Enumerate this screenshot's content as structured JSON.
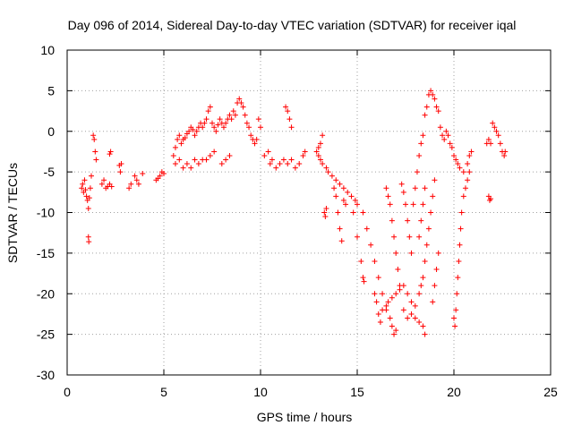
{
  "chart_data": {
    "type": "scatter",
    "title": "Day 096 of 2014, Sidereal Day-to-day VTEC variation (SDTVAR) for receiver iqal",
    "xlabel": "GPS time / hours",
    "ylabel": "SDTVAR / TECUs",
    "xlim": [
      0,
      25
    ],
    "ylim": [
      -30,
      10
    ],
    "x_ticks": [
      0,
      5,
      10,
      15,
      20,
      25
    ],
    "y_ticks": [
      -30,
      -25,
      -20,
      -15,
      -10,
      -5,
      0,
      5,
      10
    ],
    "x_tick_labels": [
      "0",
      "5",
      "10",
      "15",
      "20",
      "25"
    ],
    "y_tick_labels": [
      "-30",
      "-25",
      "-20",
      "-15",
      "-10",
      "-5",
      "0",
      "5",
      "10"
    ],
    "grid": true,
    "marker": "+",
    "color": "#ff0000",
    "series": [
      {
        "name": "SDTVAR",
        "points": [
          [
            0.75,
            -7.0
          ],
          [
            0.8,
            -6.5
          ],
          [
            0.85,
            -7.5
          ],
          [
            0.9,
            -6.0
          ],
          [
            0.95,
            -7.2
          ],
          [
            1.0,
            -8.0
          ],
          [
            1.05,
            -8.5
          ],
          [
            1.1,
            -9.5
          ],
          [
            1.15,
            -8.2
          ],
          [
            1.2,
            -7.0
          ],
          [
            1.25,
            -5.5
          ],
          [
            1.1,
            -13.0
          ],
          [
            1.12,
            -13.6
          ],
          [
            1.35,
            -0.5
          ],
          [
            1.4,
            -1.0
          ],
          [
            1.45,
            -2.5
          ],
          [
            1.5,
            -3.5
          ],
          [
            1.8,
            -6.5
          ],
          [
            1.9,
            -6.0
          ],
          [
            2.0,
            -7.0
          ],
          [
            2.1,
            -6.8
          ],
          [
            2.2,
            -6.5
          ],
          [
            2.3,
            -6.8
          ],
          [
            2.2,
            -2.8
          ],
          [
            2.25,
            -2.5
          ],
          [
            2.7,
            -4.2
          ],
          [
            2.75,
            -5.0
          ],
          [
            2.8,
            -4.0
          ],
          [
            3.2,
            -7.0
          ],
          [
            3.3,
            -6.5
          ],
          [
            3.5,
            -5.5
          ],
          [
            3.6,
            -6.0
          ],
          [
            3.7,
            -6.5
          ],
          [
            3.9,
            -5.2
          ],
          [
            4.6,
            -6.0
          ],
          [
            4.7,
            -5.8
          ],
          [
            4.8,
            -5.5
          ],
          [
            4.9,
            -5.0
          ],
          [
            5.0,
            -5.2
          ],
          [
            5.5,
            -3.0
          ],
          [
            5.6,
            -2.0
          ],
          [
            5.7,
            -1.0
          ],
          [
            5.8,
            -0.5
          ],
          [
            5.9,
            -1.5
          ],
          [
            6.0,
            -1.0
          ],
          [
            6.1,
            -0.8
          ],
          [
            6.2,
            -0.3
          ],
          [
            6.3,
            0.0
          ],
          [
            6.4,
            0.5
          ],
          [
            6.5,
            0.2
          ],
          [
            6.6,
            -0.5
          ],
          [
            6.7,
            0.0
          ],
          [
            6.8,
            0.5
          ],
          [
            6.9,
            1.0
          ],
          [
            7.0,
            0.5
          ],
          [
            7.1,
            1.0
          ],
          [
            7.2,
            1.5
          ],
          [
            7.3,
            2.5
          ],
          [
            7.4,
            3.0
          ],
          [
            7.5,
            1.0
          ],
          [
            7.6,
            0.5
          ],
          [
            7.7,
            0.0
          ],
          [
            7.8,
            0.8
          ],
          [
            7.9,
            1.5
          ],
          [
            8.0,
            1.0
          ],
          [
            8.1,
            0.5
          ],
          [
            8.2,
            1.0
          ],
          [
            8.3,
            1.5
          ],
          [
            8.4,
            2.0
          ],
          [
            8.5,
            1.5
          ],
          [
            8.6,
            2.5
          ],
          [
            8.7,
            2.0
          ],
          [
            8.8,
            3.5
          ],
          [
            8.9,
            4.0
          ],
          [
            9.0,
            3.5
          ],
          [
            9.1,
            3.0
          ],
          [
            9.2,
            2.0
          ],
          [
            9.3,
            1.0
          ],
          [
            9.4,
            0.5
          ],
          [
            9.5,
            -0.5
          ],
          [
            9.6,
            -1.0
          ],
          [
            9.7,
            -1.5
          ],
          [
            9.8,
            -1.0
          ],
          [
            9.9,
            1.5
          ],
          [
            10.0,
            0.5
          ],
          [
            5.6,
            -4.0
          ],
          [
            5.8,
            -3.5
          ],
          [
            6.0,
            -4.5
          ],
          [
            6.2,
            -4.0
          ],
          [
            6.4,
            -4.5
          ],
          [
            6.6,
            -3.5
          ],
          [
            6.8,
            -4.0
          ],
          [
            7.0,
            -3.5
          ],
          [
            7.2,
            -3.5
          ],
          [
            7.4,
            -3.0
          ],
          [
            7.6,
            -2.5
          ],
          [
            8.0,
            -4.0
          ],
          [
            8.2,
            -3.5
          ],
          [
            8.4,
            -3.0
          ],
          [
            10.2,
            -3.0
          ],
          [
            10.4,
            -2.5
          ],
          [
            10.5,
            -4.0
          ],
          [
            10.6,
            -3.5
          ],
          [
            10.8,
            -4.5
          ],
          [
            11.0,
            -4.0
          ],
          [
            11.2,
            -3.5
          ],
          [
            11.4,
            -4.0
          ],
          [
            11.6,
            -3.5
          ],
          [
            11.8,
            -4.5
          ],
          [
            12.0,
            -4.0
          ],
          [
            12.2,
            -3.0
          ],
          [
            12.3,
            -2.5
          ],
          [
            11.3,
            3.0
          ],
          [
            11.4,
            2.5
          ],
          [
            11.5,
            1.5
          ],
          [
            11.6,
            0.5
          ],
          [
            12.9,
            -2.5
          ],
          [
            13.0,
            -3.0
          ],
          [
            13.1,
            -3.5
          ],
          [
            13.2,
            -4.0
          ],
          [
            13.4,
            -4.5
          ],
          [
            13.5,
            -5.0
          ],
          [
            13.7,
            -5.5
          ],
          [
            13.9,
            -6.0
          ],
          [
            14.1,
            -6.5
          ],
          [
            14.3,
            -7.0
          ],
          [
            14.5,
            -7.5
          ],
          [
            14.7,
            -8.0
          ],
          [
            14.9,
            -8.5
          ],
          [
            15.0,
            -9.0
          ],
          [
            13.0,
            -2.0
          ],
          [
            13.1,
            -1.5
          ],
          [
            13.2,
            -0.5
          ],
          [
            13.3,
            -10.0
          ],
          [
            13.35,
            -10.5
          ],
          [
            13.4,
            -9.5
          ],
          [
            13.8,
            -7.0
          ],
          [
            13.9,
            -8.0
          ],
          [
            14.0,
            -10.0
          ],
          [
            14.1,
            -12.0
          ],
          [
            14.2,
            -13.5
          ],
          [
            14.3,
            -8.5
          ],
          [
            14.4,
            -9.0
          ],
          [
            14.8,
            -10.0
          ],
          [
            15.0,
            -13.0
          ],
          [
            15.2,
            -16.0
          ],
          [
            15.3,
            -18.0
          ],
          [
            15.35,
            -18.5
          ],
          [
            15.3,
            -10.0
          ],
          [
            15.5,
            -12.0
          ],
          [
            15.7,
            -14.0
          ],
          [
            15.9,
            -16.0
          ],
          [
            16.1,
            -18.0
          ],
          [
            16.3,
            -20.0
          ],
          [
            16.5,
            -22.0
          ],
          [
            16.7,
            -23.0
          ],
          [
            15.9,
            -20.0
          ],
          [
            16.0,
            -21.0
          ],
          [
            16.1,
            -22.5
          ],
          [
            16.2,
            -23.5
          ],
          [
            16.3,
            -22.0
          ],
          [
            16.5,
            -21.5
          ],
          [
            16.6,
            -21.0
          ],
          [
            16.8,
            -20.5
          ],
          [
            17.0,
            -20.0
          ],
          [
            17.2,
            -19.5
          ],
          [
            17.4,
            -19.0
          ],
          [
            17.6,
            -20.0
          ],
          [
            17.8,
            -21.0
          ],
          [
            18.0,
            -21.5
          ],
          [
            16.5,
            -7.0
          ],
          [
            16.6,
            -8.0
          ],
          [
            16.7,
            -9.0
          ],
          [
            16.8,
            -11.0
          ],
          [
            16.9,
            -13.0
          ],
          [
            17.0,
            -15.0
          ],
          [
            17.1,
            -17.0
          ],
          [
            17.2,
            -19.0
          ],
          [
            16.8,
            -24.0
          ],
          [
            16.9,
            -25.0
          ],
          [
            17.0,
            -24.5
          ],
          [
            17.3,
            -6.5
          ],
          [
            17.4,
            -7.5
          ],
          [
            17.5,
            -9.0
          ],
          [
            17.6,
            -11.0
          ],
          [
            17.7,
            -13.0
          ],
          [
            17.8,
            -15.0
          ],
          [
            17.4,
            -22.0
          ],
          [
            17.6,
            -23.0
          ],
          [
            17.8,
            -22.5
          ],
          [
            18.0,
            -23.0
          ],
          [
            18.2,
            -23.5
          ],
          [
            18.4,
            -24.0
          ],
          [
            18.5,
            -25.0
          ],
          [
            17.9,
            -9.0
          ],
          [
            18.0,
            -7.0
          ],
          [
            18.1,
            -5.0
          ],
          [
            18.2,
            -3.0
          ],
          [
            18.3,
            -1.5
          ],
          [
            18.4,
            -0.5
          ],
          [
            18.2,
            -13.0
          ],
          [
            18.3,
            -11.0
          ],
          [
            18.4,
            -9.0
          ],
          [
            18.5,
            -7.0
          ],
          [
            18.5,
            2.0
          ],
          [
            18.6,
            3.0
          ],
          [
            18.7,
            4.5
          ],
          [
            18.8,
            5.0
          ],
          [
            18.9,
            4.5
          ],
          [
            19.0,
            4.0
          ],
          [
            19.1,
            3.0
          ],
          [
            19.2,
            2.5
          ],
          [
            18.2,
            -20.0
          ],
          [
            18.3,
            -19.0
          ],
          [
            18.4,
            -18.0
          ],
          [
            18.5,
            -16.0
          ],
          [
            18.6,
            -14.0
          ],
          [
            18.7,
            -12.0
          ],
          [
            18.8,
            -10.0
          ],
          [
            18.9,
            -8.0
          ],
          [
            19.0,
            -6.0
          ],
          [
            19.2,
            -15.0
          ],
          [
            19.1,
            -17.0
          ],
          [
            19.0,
            -19.0
          ],
          [
            18.9,
            -21.0
          ],
          [
            19.3,
            0.5
          ],
          [
            19.4,
            -0.5
          ],
          [
            19.5,
            -1.0
          ],
          [
            19.6,
            0.0
          ],
          [
            19.7,
            -0.5
          ],
          [
            19.8,
            -1.5
          ],
          [
            19.9,
            -2.0
          ],
          [
            20.0,
            -23.0
          ],
          [
            20.05,
            -24.0
          ],
          [
            20.1,
            -22.0
          ],
          [
            20.15,
            -20.0
          ],
          [
            20.2,
            -18.0
          ],
          [
            20.25,
            -16.0
          ],
          [
            20.3,
            -14.0
          ],
          [
            20.35,
            -12.0
          ],
          [
            20.4,
            -10.0
          ],
          [
            20.5,
            -8.0
          ],
          [
            20.6,
            -7.0
          ],
          [
            20.7,
            -6.0
          ],
          [
            20.8,
            -5.0
          ],
          [
            20.0,
            -3.0
          ],
          [
            20.1,
            -3.5
          ],
          [
            20.2,
            -4.0
          ],
          [
            20.3,
            -4.5
          ],
          [
            20.5,
            -5.0
          ],
          [
            20.7,
            -4.0
          ],
          [
            20.8,
            -3.0
          ],
          [
            20.9,
            -2.5
          ],
          [
            21.8,
            -8.0
          ],
          [
            21.85,
            -8.5
          ],
          [
            21.9,
            -8.3
          ],
          [
            21.7,
            -1.5
          ],
          [
            21.8,
            -1.0
          ],
          [
            21.9,
            -1.5
          ],
          [
            22.0,
            1.0
          ],
          [
            22.1,
            0.5
          ],
          [
            22.2,
            0.0
          ],
          [
            22.3,
            -0.5
          ],
          [
            22.4,
            -1.5
          ],
          [
            22.5,
            -2.5
          ],
          [
            22.6,
            -3.0
          ],
          [
            22.65,
            -2.5
          ]
        ]
      }
    ]
  }
}
